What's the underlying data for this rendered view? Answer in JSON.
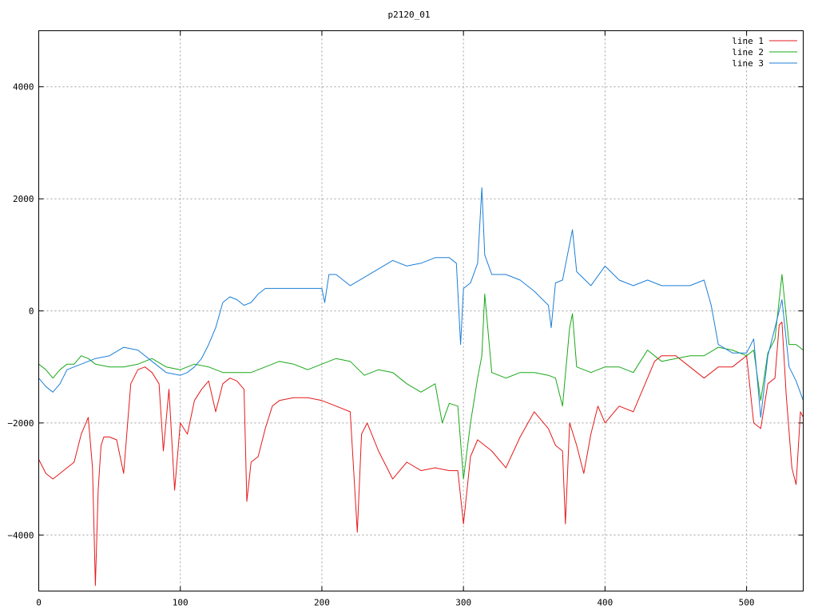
{
  "chart_data": {
    "type": "line",
    "title": "p2120_01",
    "xlabel": "",
    "ylabel": "",
    "xlim": [
      0,
      540
    ],
    "ylim": [
      -5000,
      5000
    ],
    "xticks": [
      0,
      100,
      200,
      300,
      400,
      500
    ],
    "yticks": [
      -4000,
      -2000,
      0,
      2000,
      4000
    ],
    "ytick_labels": [
      "−4000",
      "−2000",
      "0",
      "2000",
      "4000"
    ],
    "grid": true,
    "legend": "top-right",
    "series": [
      {
        "name": "line 1",
        "color": "#e41a1c",
        "x": [
          0,
          5,
          10,
          15,
          20,
          25,
          30,
          35,
          38,
          40,
          42,
          44,
          46,
          50,
          55,
          60,
          65,
          70,
          75,
          80,
          85,
          88,
          92,
          96,
          100,
          105,
          110,
          115,
          120,
          125,
          130,
          135,
          140,
          145,
          147,
          150,
          155,
          160,
          165,
          170,
          180,
          190,
          200,
          210,
          220,
          225,
          228,
          232,
          240,
          250,
          260,
          270,
          280,
          290,
          296,
          300,
          305,
          310,
          320,
          330,
          340,
          350,
          360,
          365,
          370,
          372,
          375,
          380,
          385,
          390,
          395,
          400,
          410,
          420,
          430,
          435,
          440,
          450,
          460,
          470,
          480,
          490,
          500,
          505,
          510,
          515,
          520,
          523,
          525,
          528,
          532,
          535,
          538,
          540
        ],
        "values": [
          -2650,
          -2900,
          -3000,
          -2900,
          -2800,
          -2700,
          -2200,
          -1900,
          -2800,
          -4900,
          -3200,
          -2400,
          -2250,
          -2250,
          -2300,
          -2900,
          -1300,
          -1050,
          -1000,
          -1100,
          -1300,
          -2500,
          -1400,
          -3200,
          -2000,
          -2200,
          -1600,
          -1400,
          -1250,
          -1800,
          -1300,
          -1200,
          -1250,
          -1400,
          -3400,
          -2700,
          -2600,
          -2100,
          -1700,
          -1600,
          -1550,
          -1550,
          -1600,
          -1700,
          -1800,
          -3950,
          -2200,
          -2000,
          -2500,
          -3000,
          -2700,
          -2850,
          -2800,
          -2850,
          -2850,
          -3800,
          -2600,
          -2300,
          -2500,
          -2800,
          -2250,
          -1800,
          -2100,
          -2400,
          -2500,
          -3800,
          -2000,
          -2400,
          -2900,
          -2200,
          -1700,
          -2000,
          -1700,
          -1800,
          -1200,
          -900,
          -800,
          -800,
          -1000,
          -1200,
          -1000,
          -1000,
          -800,
          -2000,
          -2100,
          -1300,
          -1200,
          -250,
          -200,
          -1500,
          -2800,
          -3100,
          -1800,
          -1900
        ]
      },
      {
        "name": "line 2",
        "color": "#1aa81a",
        "x": [
          0,
          5,
          10,
          15,
          20,
          25,
          30,
          35,
          40,
          50,
          60,
          70,
          80,
          90,
          100,
          110,
          120,
          130,
          140,
          150,
          160,
          170,
          180,
          190,
          200,
          210,
          220,
          230,
          240,
          250,
          260,
          270,
          280,
          285,
          290,
          296,
          300,
          305,
          310,
          313,
          315,
          320,
          330,
          340,
          350,
          360,
          365,
          370,
          375,
          377,
          380,
          390,
          400,
          410,
          420,
          430,
          435,
          440,
          450,
          460,
          470,
          480,
          490,
          500,
          505,
          510,
          515,
          520,
          525,
          530,
          535,
          540
        ],
        "values": [
          -950,
          -1050,
          -1200,
          -1050,
          -950,
          -950,
          -800,
          -850,
          -950,
          -1000,
          -1000,
          -950,
          -850,
          -1000,
          -1050,
          -950,
          -1000,
          -1100,
          -1100,
          -1100,
          -1000,
          -900,
          -950,
          -1050,
          -950,
          -850,
          -900,
          -1150,
          -1050,
          -1100,
          -1300,
          -1450,
          -1300,
          -2000,
          -1650,
          -1700,
          -3000,
          -2000,
          -1200,
          -800,
          300,
          -1100,
          -1200,
          -1100,
          -1100,
          -1150,
          -1200,
          -1700,
          -300,
          -50,
          -1000,
          -1100,
          -1000,
          -1000,
          -1100,
          -700,
          -800,
          -900,
          -850,
          -800,
          -800,
          -650,
          -700,
          -800,
          -700,
          -1600,
          -750,
          -500,
          650,
          -600,
          -600,
          -700
        ]
      },
      {
        "name": "line 3",
        "color": "#1c7fd8",
        "x": [
          0,
          5,
          10,
          15,
          20,
          30,
          40,
          50,
          60,
          70,
          80,
          90,
          100,
          105,
          110,
          115,
          120,
          125,
          130,
          135,
          140,
          145,
          150,
          155,
          160,
          170,
          180,
          190,
          200,
          202,
          205,
          210,
          220,
          230,
          240,
          250,
          260,
          270,
          280,
          290,
          295,
          298,
          300,
          305,
          310,
          313,
          315,
          320,
          330,
          340,
          350,
          360,
          362,
          365,
          370,
          377,
          380,
          390,
          400,
          410,
          420,
          430,
          440,
          450,
          460,
          470,
          475,
          480,
          490,
          500,
          505,
          510,
          515,
          520,
          525,
          530,
          535,
          540
        ],
        "values": [
          -1200,
          -1350,
          -1450,
          -1300,
          -1050,
          -950,
          -850,
          -800,
          -650,
          -700,
          -900,
          -1100,
          -1150,
          -1100,
          -1000,
          -850,
          -600,
          -300,
          150,
          250,
          200,
          100,
          150,
          300,
          400,
          400,
          400,
          400,
          400,
          150,
          650,
          650,
          450,
          600,
          750,
          900,
          800,
          850,
          950,
          950,
          850,
          -600,
          400,
          500,
          850,
          2200,
          1000,
          650,
          650,
          550,
          350,
          100,
          -300,
          500,
          550,
          1450,
          700,
          450,
          800,
          550,
          450,
          550,
          450,
          450,
          450,
          550,
          100,
          -600,
          -750,
          -750,
          -500,
          -1900,
          -800,
          -300,
          200,
          -1000,
          -1250,
          -1600
        ]
      }
    ]
  }
}
